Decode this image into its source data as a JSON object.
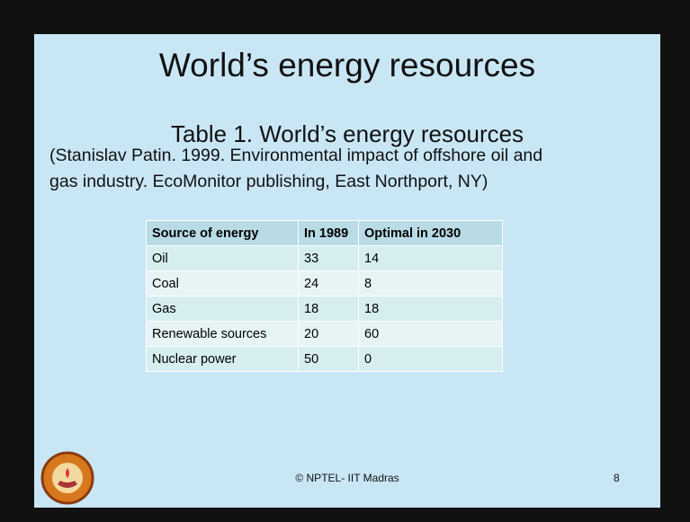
{
  "slide": {
    "title": "World’s energy resources",
    "table_title": "Table 1. World’s energy resources",
    "citation": [
      "(Stanislav Patin. 1999. Environmental impact of offshore oil and",
      "gas industry. EcoMonitor publishing, East Northport, NY)"
    ],
    "table": {
      "header": [
        "Source of energy",
        "In 1989",
        "Optimal in 2030"
      ],
      "rows": [
        [
          "Oil",
          33,
          14
        ],
        [
          "Coal",
          24,
          8
        ],
        [
          "Gas",
          18,
          18
        ],
        [
          "Renewable sources",
          20,
          60
        ],
        [
          "Nuclear power",
          50,
          0
        ]
      ]
    },
    "footer": "© NPTEL- IIT Madras",
    "page_number": 8
  }
}
